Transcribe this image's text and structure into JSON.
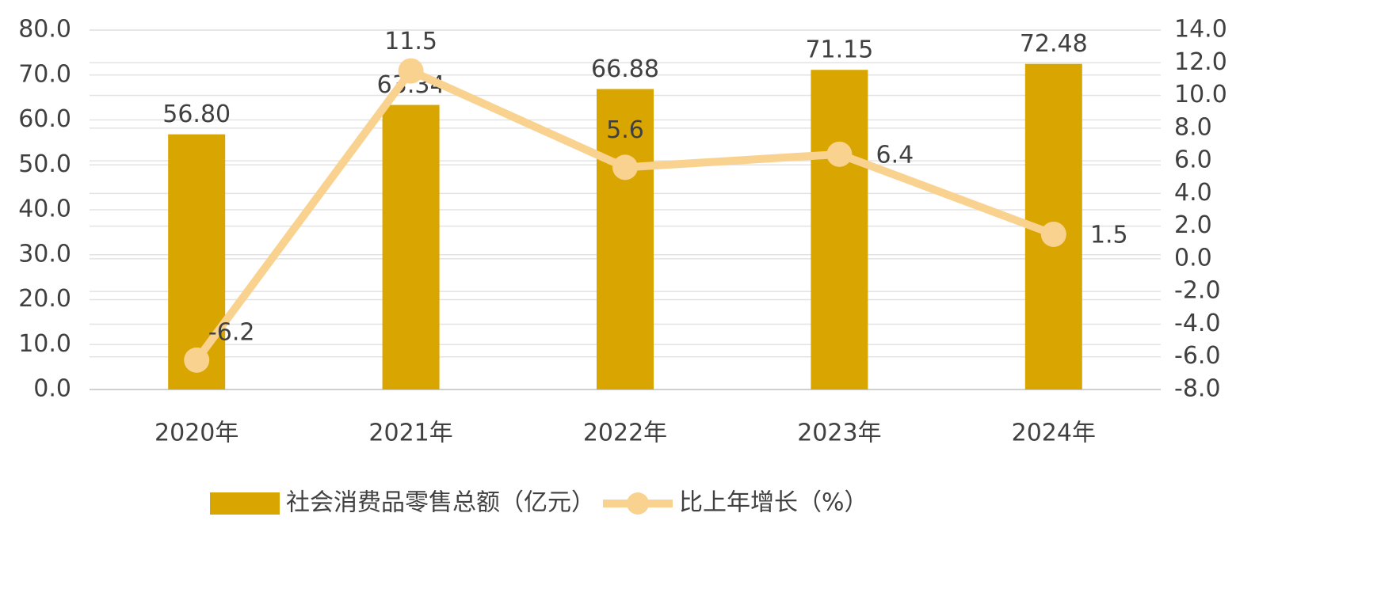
{
  "chart_data": {
    "type": "bar-line",
    "categories": [
      "2020年",
      "2021年",
      "2022年",
      "2023年",
      "2024年"
    ],
    "series": [
      {
        "name": "社会消费品零售总额（亿元）",
        "type": "bar",
        "color": "#D9A500",
        "values": [
          56.8,
          63.34,
          66.88,
          71.15,
          72.48
        ],
        "value_labels": [
          "56.80",
          "63.34",
          "66.88",
          "71.15",
          "72.48"
        ]
      },
      {
        "name": "比上年增长（%）",
        "type": "line",
        "axis": "y2",
        "color": "#F8D28E",
        "values": [
          -6.2,
          11.5,
          5.6,
          6.4,
          1.5
        ]
      }
    ],
    "ylim": [
      0,
      80
    ],
    "yticks": [
      {
        "value": 0,
        "label": "0.0"
      },
      {
        "value": 10,
        "label": "10.0"
      },
      {
        "value": 20,
        "label": "20.0"
      },
      {
        "value": 30,
        "label": "30.0"
      },
      {
        "value": 40,
        "label": "40.0"
      },
      {
        "value": 50,
        "label": "50.0"
      },
      {
        "value": 60,
        "label": "60.0"
      },
      {
        "value": 70,
        "label": "70.0"
      },
      {
        "value": 80,
        "label": "80.0"
      }
    ],
    "y2lim": [
      -8,
      14
    ],
    "y2ticks": [
      {
        "value": -8,
        "label": "-8.0"
      },
      {
        "value": -6,
        "label": "-6.0"
      },
      {
        "value": -4,
        "label": "-4.0"
      },
      {
        "value": -2,
        "label": "-2.0"
      },
      {
        "value": 0,
        "label": "0.0"
      },
      {
        "value": 2,
        "label": "2.0"
      },
      {
        "value": 4,
        "label": "4.0"
      },
      {
        "value": 6,
        "label": "6.0"
      },
      {
        "value": 8,
        "label": "8.0"
      },
      {
        "value": 10,
        "label": "10.0"
      },
      {
        "value": 12,
        "label": "12.0"
      },
      {
        "value": 14,
        "label": "14.0"
      }
    ],
    "grid": true,
    "legend": "bottom"
  }
}
